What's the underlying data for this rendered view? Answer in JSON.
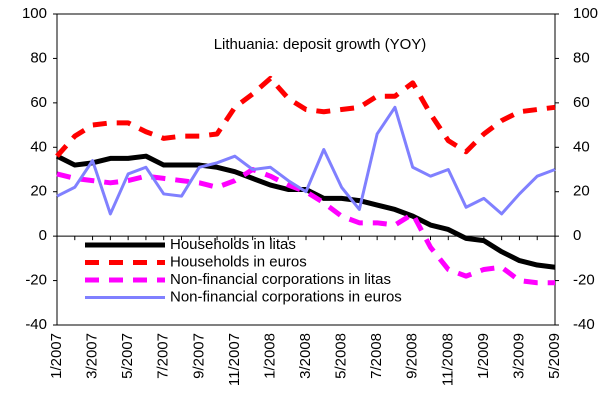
{
  "chart_data": {
    "type": "line",
    "title": "Lithuania: deposit growth (YOY)",
    "categories": [
      "1/2007",
      null,
      "3/2007",
      null,
      "5/2007",
      null,
      "7/2007",
      null,
      "9/2007",
      null,
      "11/2007",
      null,
      "1/2008",
      null,
      "3/2008",
      null,
      "5/2008",
      null,
      "7/2008",
      null,
      "9/2008",
      null,
      "11/2008",
      null,
      "1/2009",
      null,
      "3/2009",
      null,
      "5/2009"
    ],
    "series": [
      {
        "name": "Households in litas",
        "color": "#000000",
        "style": "solid",
        "width": 5,
        "values": [
          36,
          32,
          33,
          35,
          35,
          36,
          32,
          32,
          32,
          31,
          29,
          26,
          23,
          21,
          21,
          17,
          17,
          16,
          14,
          12,
          9,
          5,
          3,
          -1,
          -2,
          -7,
          -11,
          -13,
          -14
        ]
      },
      {
        "name": "Households in euros",
        "color": "#ff0000",
        "style": "dashed",
        "width": 5,
        "values": [
          36,
          45,
          50,
          51,
          51,
          47,
          44,
          45,
          45,
          46,
          58,
          64,
          71,
          62,
          57,
          56,
          57,
          58,
          63,
          63,
          69,
          55,
          43,
          38,
          46,
          52,
          56,
          57,
          58
        ]
      },
      {
        "name": "Non-financial corporations in litas",
        "color": "#ff00ff",
        "style": "dashed",
        "width": 5,
        "values": [
          28,
          26,
          25,
          24,
          25,
          27,
          26,
          25,
          24,
          22,
          25,
          30,
          27,
          23,
          20,
          15,
          9,
          6,
          6,
          5,
          10,
          -5,
          -15,
          -18,
          -15,
          -14,
          -20,
          -21,
          -21
        ]
      },
      {
        "name": "Non-financial corporations in euros",
        "color": "#8080ff",
        "style": "solid",
        "width": 3,
        "values": [
          18,
          22,
          34,
          10,
          28,
          31,
          19,
          18,
          31,
          33,
          36,
          30,
          31,
          25,
          20,
          39,
          22,
          12,
          46,
          58,
          31,
          27,
          30,
          13,
          17,
          10,
          19,
          27,
          30
        ]
      }
    ],
    "ylim": [
      -40,
      100
    ],
    "yticks": [
      -40,
      -20,
      0,
      20,
      40,
      60,
      80,
      100
    ],
    "y2lim": [
      -40,
      100
    ],
    "y2ticks": [
      -40,
      -20,
      0,
      20,
      40,
      60,
      80,
      100
    ],
    "grid": false
  }
}
